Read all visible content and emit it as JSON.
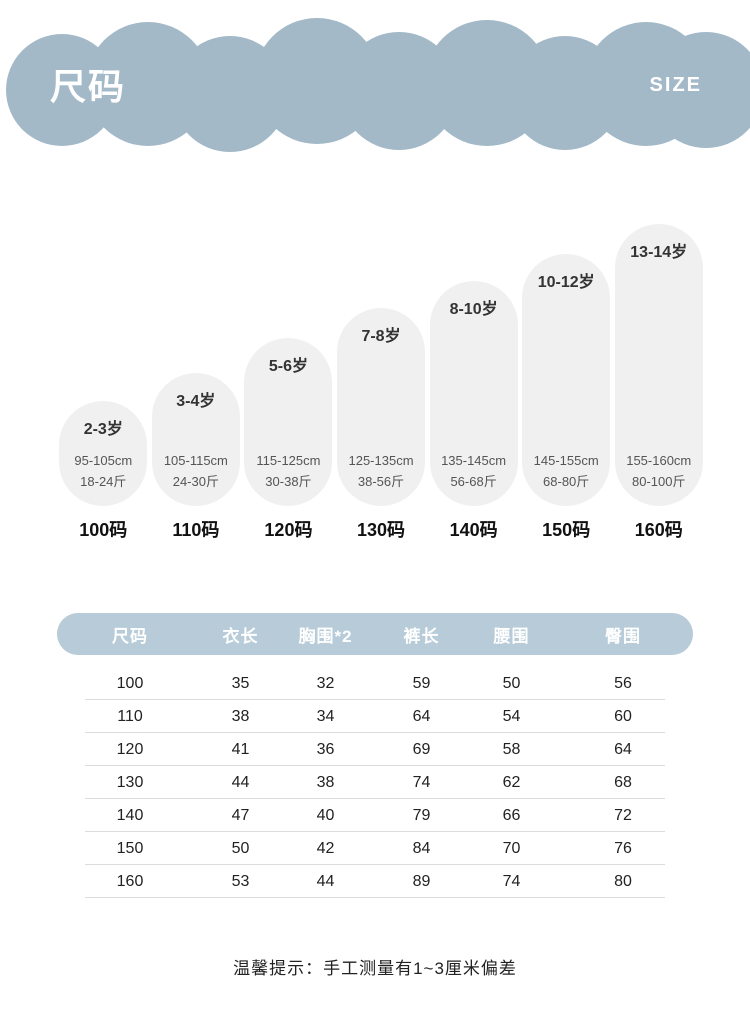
{
  "header": {
    "title": "尺码",
    "subtitle": "SIZE"
  },
  "note": "温馨提示：手工测量有1~3厘米偏差",
  "colors": {
    "band": "#a3b9c8",
    "capsule": "#f0f0f0",
    "table_header": "#b7cbd8",
    "row_divider": "#dcdcdc"
  },
  "chart_data": {
    "type": "table",
    "title": "尺码 SIZE",
    "columns": [
      "尺码",
      "衣长",
      "胸围*2",
      "裤长",
      "腰围",
      "臀围"
    ],
    "rows": [
      [
        100,
        35,
        32,
        59,
        50,
        56
      ],
      [
        110,
        38,
        34,
        64,
        54,
        60
      ],
      [
        120,
        41,
        36,
        69,
        58,
        64
      ],
      [
        130,
        44,
        38,
        74,
        62,
        68
      ],
      [
        140,
        47,
        40,
        79,
        66,
        72
      ],
      [
        150,
        50,
        42,
        84,
        70,
        76
      ],
      [
        160,
        53,
        44,
        89,
        74,
        80
      ]
    ],
    "size_guide": [
      {
        "size": "100码",
        "age": "2-3岁",
        "height": "95-105cm",
        "weight": "18-24斤"
      },
      {
        "size": "110码",
        "age": "3-4岁",
        "height": "105-115cm",
        "weight": "24-30斤"
      },
      {
        "size": "120码",
        "age": "5-6岁",
        "height": "115-125cm",
        "weight": "30-38斤"
      },
      {
        "size": "130码",
        "age": "7-8岁",
        "height": "125-135cm",
        "weight": "38-56斤"
      },
      {
        "size": "140码",
        "age": "8-10岁",
        "height": "135-145cm",
        "weight": "56-68斤"
      },
      {
        "size": "150码",
        "age": "10-12岁",
        "height": "145-155cm",
        "weight": "68-80斤"
      },
      {
        "size": "160码",
        "age": "13-14岁",
        "height": "155-160cm",
        "weight": "80-100斤"
      }
    ],
    "note": "温馨提示：手工测量有1~3厘米偏差"
  }
}
